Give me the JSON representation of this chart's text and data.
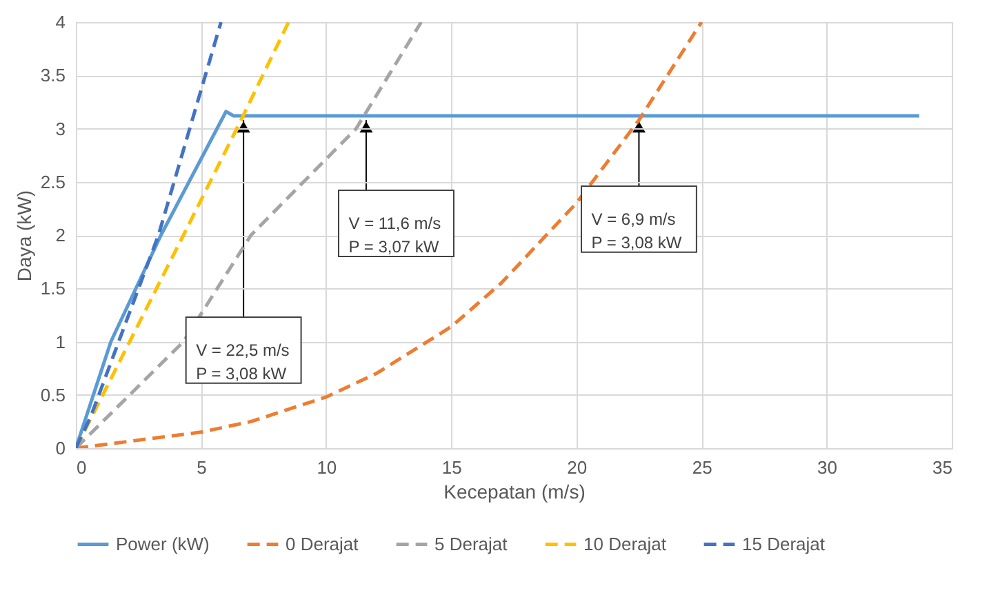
{
  "chart_data": {
    "type": "line",
    "xlabel": "Kecepatan (m/s)",
    "ylabel": "Daya (kW)",
    "xlim": [
      0,
      35
    ],
    "ylim": [
      0,
      4
    ],
    "xticks": [
      0,
      5,
      10,
      15,
      20,
      25,
      30,
      35
    ],
    "yticks": [
      0,
      0.5,
      1,
      1.5,
      2,
      2.5,
      3,
      3.5,
      4
    ],
    "grid": true,
    "legend": "bottom",
    "marker": "none",
    "series": [
      {
        "name": "Power (kW)",
        "color": "#5b9bd5",
        "line_style": "solid",
        "x": [
          0,
          1.4,
          3.4,
          6.0,
          6.3,
          33.7
        ],
        "values": [
          0,
          1,
          2,
          3.16,
          3.12,
          3.12
        ]
      },
      {
        "name": "0 Derajat",
        "color": "#ed7d31",
        "line_style": "dashed",
        "x": [
          0,
          5,
          7,
          10,
          12,
          15,
          17,
          20,
          22.5,
          25
        ],
        "values": [
          0,
          0.15,
          0.25,
          0.48,
          0.7,
          1.14,
          1.55,
          2.3,
          3.08,
          4.0
        ]
      },
      {
        "name": "5 Derajat",
        "color": "#a5a5a5",
        "line_style": "dashed",
        "x": [
          0,
          4.3,
          7.0,
          11.2,
          13.8
        ],
        "values": [
          0,
          1,
          2,
          3,
          4
        ]
      },
      {
        "name": "10 Derajat",
        "color": "#ffc000",
        "line_style": "dashed",
        "x": [
          0,
          4.3,
          6.6,
          8.5
        ],
        "values": [
          0,
          2,
          3.08,
          4
        ]
      },
      {
        "name": "15 Derajat",
        "color": "#4472c4",
        "line_style": "dashed",
        "x": [
          0,
          0.6,
          3.3,
          5.8
        ],
        "values": [
          0,
          0.3,
          2,
          4
        ]
      }
    ],
    "annotations": [
      {
        "text": "V = 22,5 m/s\nP = 3,08 kW",
        "x": 6.7,
        "y": 3.08
      },
      {
        "text": "V = 11,6 m/s\nP = 3,07 kW",
        "x": 11.6,
        "y": 3.08
      },
      {
        "text": "V = 6,9 m/s\nP = 3,08 kW",
        "x": 22.5,
        "y": 3.08
      }
    ]
  }
}
